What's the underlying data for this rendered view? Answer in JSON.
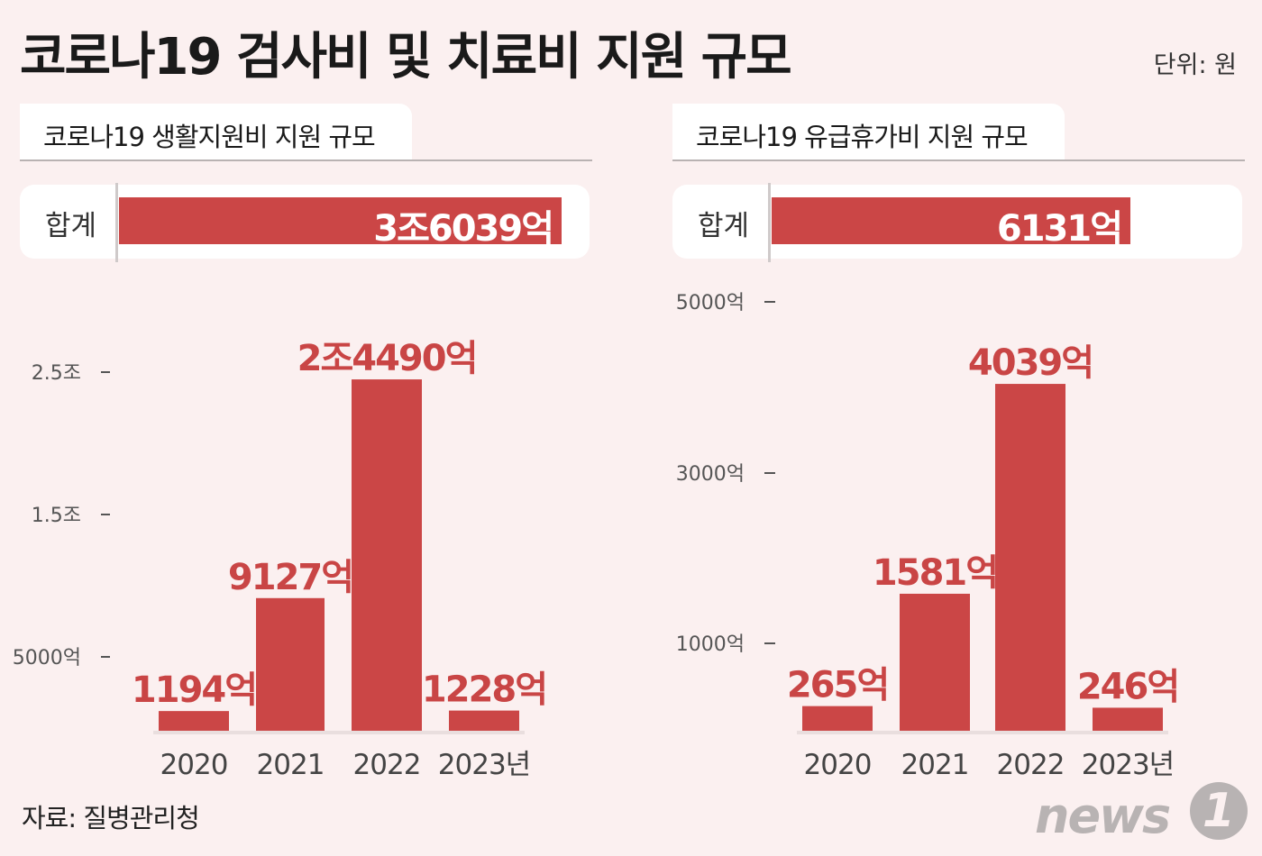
{
  "title": "코로나19 검사비 및 치료비 지원 규모",
  "unit": "단위: 원",
  "source": "자료: 질병관리청",
  "logo": {
    "text": "news",
    "badge": "1"
  },
  "colors": {
    "bar": "#cb4646",
    "value_text": "#c94545",
    "background": "#fbf0f0"
  },
  "panels": [
    {
      "title": "코로나19 생활지원비 지원 규모",
      "total_label": "합계",
      "total_value": "3조6039억",
      "total_fill": 0.9,
      "y_ticks": [
        "2.5조",
        "1.5조",
        "5000억"
      ],
      "value_labels": [
        "1194억",
        "9127억",
        "2조4490억",
        "1228억"
      ],
      "category_labels": [
        "2020",
        "2021",
        "2022",
        "2023년"
      ]
    },
    {
      "title": "코로나19 유급휴가비 지원 규모",
      "total_label": "합계",
      "total_value": "6131억",
      "total_fill": 0.73,
      "y_ticks": [
        "5000억",
        "3000억",
        "1000억"
      ],
      "value_labels": [
        "265억",
        "1581억",
        "4039억",
        "246억"
      ],
      "category_labels": [
        "2020",
        "2021",
        "2022",
        "2023년"
      ]
    }
  ],
  "chart_data": [
    {
      "type": "bar",
      "title": "코로나19 생활지원비 지원 규모",
      "categories": [
        "2020",
        "2021",
        "2022",
        "2023년"
      ],
      "values": [
        1194,
        9127,
        24490,
        1228
      ],
      "y_unit": "억 원",
      "y_ticks": [
        25000,
        15000,
        5000
      ],
      "total": 36039
    },
    {
      "type": "bar",
      "title": "코로나19 유급휴가비 지원 규모",
      "categories": [
        "2020",
        "2021",
        "2022",
        "2023년"
      ],
      "values": [
        265,
        1581,
        4039,
        246
      ],
      "y_unit": "억 원",
      "y_ticks": [
        5000,
        3000,
        1000
      ],
      "total": 6131
    }
  ]
}
